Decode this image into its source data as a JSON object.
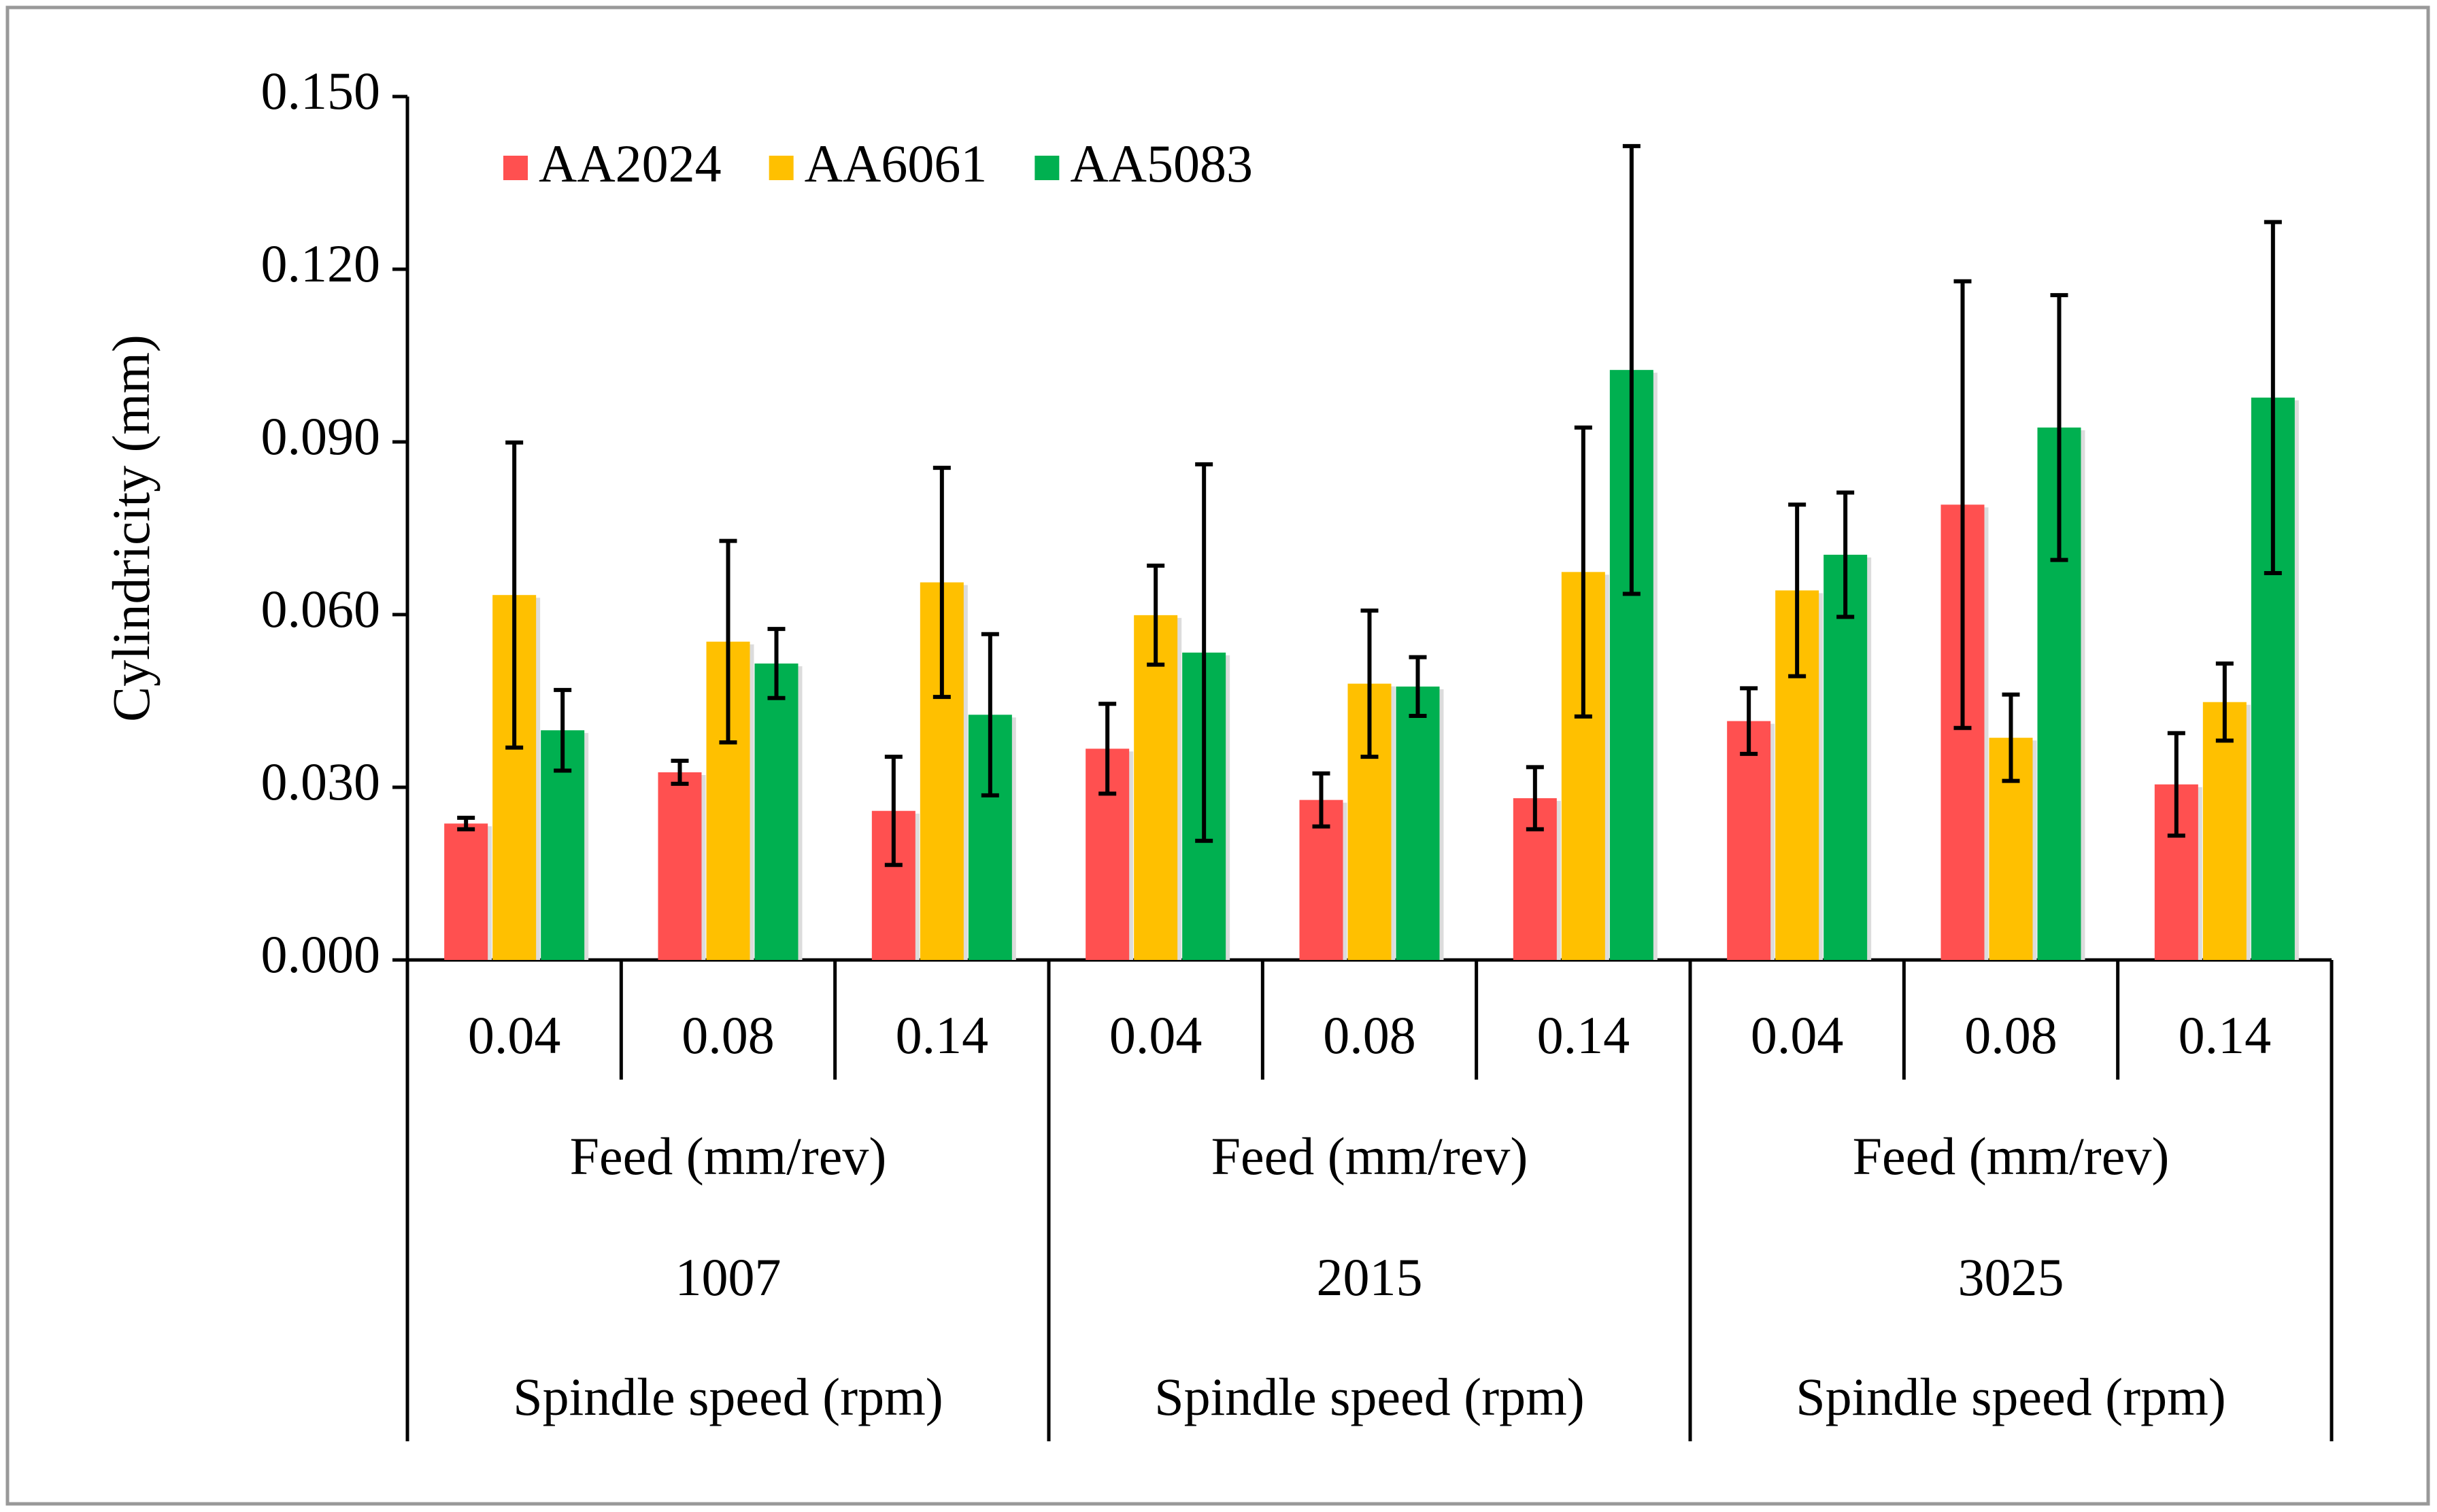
{
  "chart_data": {
    "type": "bar",
    "y_label": "Cylindricity (mm)",
    "categories": [
      "0.04",
      "0.08",
      "0.14",
      "0.04",
      "0.08",
      "0.14",
      "0.04",
      "0.08",
      "0.14"
    ],
    "x_sublabels": [
      "Feed (mm/rev)",
      "Feed (mm/rev)",
      "Feed (mm/rev)"
    ],
    "group_labels": [
      "1007",
      "2015",
      "3025"
    ],
    "x_group_titles": [
      "Spindle speed (rpm)",
      "Spindle speed (rpm)",
      "Spindle speed (rpm)"
    ],
    "ylim": [
      0,
      0.15
    ],
    "yticks": [
      {
        "value": 0,
        "label": "0.000"
      },
      {
        "value": 0.03,
        "label": "0.030"
      },
      {
        "value": 0.06,
        "label": "0.060"
      },
      {
        "value": 0.09,
        "label": "0.090"
      },
      {
        "value": 0.12,
        "label": "0.120"
      },
      {
        "value": 0.15,
        "label": "0.150"
      }
    ],
    "legend_position": "top-left",
    "series": [
      {
        "name": "AA2024",
        "color": "#ff5050",
        "values": [
          0.0237,
          0.0326,
          0.0259,
          0.0367,
          0.0278,
          0.0281,
          0.0415,
          0.0791,
          0.0305
        ],
        "errors": [
          0.001,
          0.002,
          0.0094,
          0.0078,
          0.0046,
          0.0054,
          0.0057,
          0.0388,
          0.0089
        ]
      },
      {
        "name": "AA6061",
        "color": "#ffc000",
        "values": [
          0.0634,
          0.0553,
          0.0656,
          0.0599,
          0.048,
          0.0674,
          0.0642,
          0.0386,
          0.0448
        ],
        "errors": [
          0.0265,
          0.0175,
          0.0199,
          0.0086,
          0.0127,
          0.0251,
          0.0149,
          0.0075,
          0.0067
        ]
      },
      {
        "name": "AA5083",
        "color": "#00b050",
        "values": [
          0.0399,
          0.0515,
          0.0426,
          0.0534,
          0.0475,
          0.1025,
          0.0704,
          0.0925,
          0.0977
        ],
        "errors": [
          0.007,
          0.006,
          0.014,
          0.0327,
          0.0051,
          0.0389,
          0.0108,
          0.023,
          0.0305
        ]
      }
    ]
  }
}
